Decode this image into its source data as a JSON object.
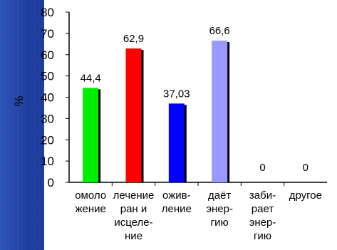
{
  "chart_data": {
    "type": "bar",
    "categories": [
      [
        "омоло",
        "жение"
      ],
      [
        "лечение",
        "ран и",
        "исцеле-",
        "ние"
      ],
      [
        "ожив-",
        "ление"
      ],
      [
        "даёт",
        "энер-",
        "гию"
      ],
      [
        "заби-",
        "рает",
        "энер-",
        "гию"
      ],
      [
        "другое"
      ]
    ],
    "values": [
      44.4,
      62.9,
      37.03,
      66.6,
      0,
      0
    ],
    "value_labels": [
      "44,4",
      "62,9",
      "37,03",
      "66,6",
      "0",
      "0"
    ],
    "colors": [
      "#00ee00",
      "#ff0000",
      "#0000ff",
      "#9999ff",
      "#9999ff",
      "#9999ff"
    ],
    "ylabel": "%",
    "ylim": [
      0,
      80
    ],
    "yticks": [
      "0",
      "10",
      "20",
      "30",
      "40",
      "50",
      "60",
      "70",
      "80"
    ],
    "grid": false,
    "legend": "none"
  },
  "colors": {
    "background": "#1c3a99",
    "panel": "#ffffff",
    "bar_shadow": "#000000"
  }
}
